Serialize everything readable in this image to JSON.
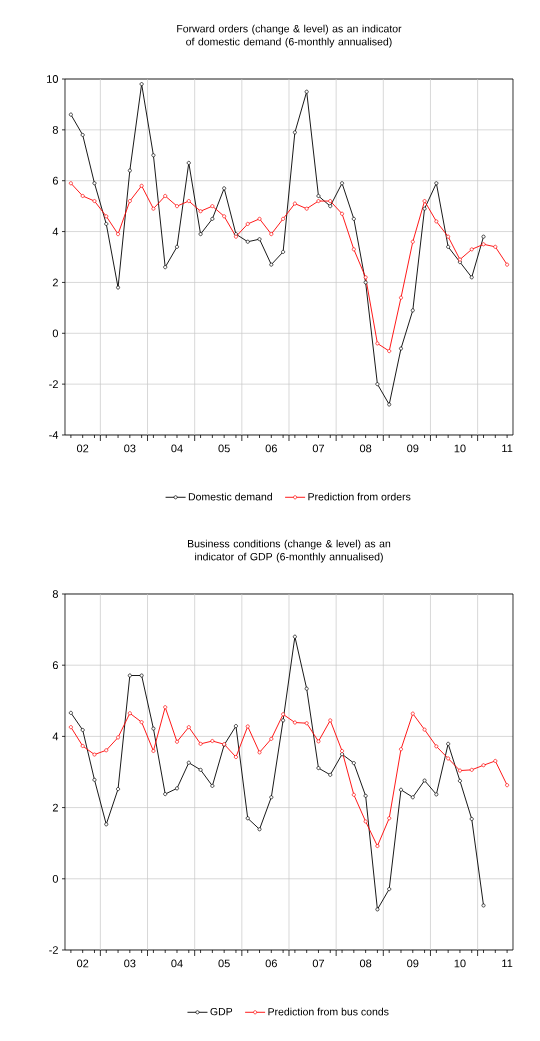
{
  "chart_data": [
    {
      "type": "line",
      "title": "Forward orders (change & level) as an indicator of domestic demand (6-monthly annualised)",
      "categories": [
        null,
        "02",
        null,
        null,
        null,
        "03",
        null,
        null,
        null,
        "04",
        null,
        null,
        null,
        "05",
        null,
        null,
        null,
        "06",
        null,
        null,
        null,
        "07",
        null,
        null,
        null,
        "08",
        null,
        null,
        null,
        "09",
        null,
        null,
        null,
        "10",
        null,
        null,
        null,
        "11"
      ],
      "series": [
        {
          "name": "Domestic demand",
          "color": "#000000",
          "values": [
            8.6,
            7.8,
            5.9,
            4.3,
            1.8,
            6.4,
            9.8,
            7.0,
            2.6,
            3.4,
            6.7,
            3.9,
            4.5,
            5.7,
            3.9,
            3.6,
            3.7,
            2.7,
            3.2,
            7.9,
            9.5,
            5.4,
            5.0,
            5.9,
            4.5,
            2.0,
            -2.0,
            -2.8,
            -0.6,
            0.9,
            4.9,
            5.9,
            3.4,
            2.8,
            2.2,
            3.8,
            null,
            null
          ]
        },
        {
          "name": "Prediction from orders",
          "color": "#ff0000",
          "values": [
            5.9,
            5.4,
            5.2,
            4.6,
            3.9,
            5.2,
            5.8,
            4.9,
            5.4,
            5.0,
            5.2,
            4.8,
            5.0,
            4.6,
            3.8,
            4.3,
            4.5,
            3.9,
            4.5,
            5.1,
            4.9,
            5.2,
            5.2,
            4.7,
            3.3,
            2.2,
            -0.4,
            -0.7,
            1.4,
            3.6,
            5.2,
            4.4,
            3.8,
            2.9,
            3.3,
            3.5,
            3.4,
            2.7
          ]
        }
      ],
      "ylim": [
        -4,
        10
      ],
      "yticks": [
        -4,
        -2,
        0,
        2,
        4,
        6,
        8,
        10
      ],
      "grid": true,
      "legend": "bottom",
      "marker": "circle",
      "line_style": "solid"
    },
    {
      "type": "line",
      "title": "Business conditions (change & level) as an indicator of GDP (6-monthly annualised)",
      "categories": [
        null,
        "02",
        null,
        null,
        null,
        "03",
        null,
        null,
        null,
        "04",
        null,
        null,
        null,
        "05",
        null,
        null,
        null,
        "06",
        null,
        null,
        null,
        "07",
        null,
        null,
        null,
        "08",
        null,
        null,
        null,
        "09",
        null,
        null,
        null,
        "10",
        null,
        null,
        null,
        "11"
      ],
      "series": [
        {
          "name": "GDP",
          "color": "#000000",
          "values": [
            4.66,
            4.18,
            2.78,
            1.53,
            2.52,
            5.71,
            5.71,
            4.22,
            2.38,
            2.54,
            3.26,
            3.06,
            2.61,
            3.76,
            4.29,
            1.7,
            1.39,
            2.29,
            4.45,
            6.8,
            5.34,
            3.11,
            2.92,
            3.5,
            3.25,
            2.33,
            -0.86,
            -0.29,
            2.5,
            2.29,
            2.76,
            2.37,
            3.79,
            2.75,
            1.68,
            -0.75,
            null,
            null
          ]
        },
        {
          "name": "Prediction from bus conds",
          "color": "#ff0000",
          "values": [
            4.26,
            3.73,
            3.49,
            3.61,
            3.97,
            4.65,
            4.4,
            3.59,
            4.82,
            3.85,
            4.26,
            3.79,
            3.87,
            3.78,
            3.42,
            4.28,
            3.55,
            3.93,
            4.62,
            4.39,
            4.37,
            3.86,
            4.45,
            3.59,
            2.36,
            1.61,
            0.92,
            1.7,
            3.64,
            4.64,
            4.19,
            3.72,
            3.38,
            3.04,
            3.06,
            3.19,
            3.31,
            2.63
          ]
        }
      ],
      "ylim": [
        -2,
        8
      ],
      "yticks": [
        -2,
        0,
        2,
        4,
        6,
        8
      ],
      "grid": true,
      "legend": "bottom",
      "marker": "circle",
      "line_style": "solid"
    }
  ]
}
